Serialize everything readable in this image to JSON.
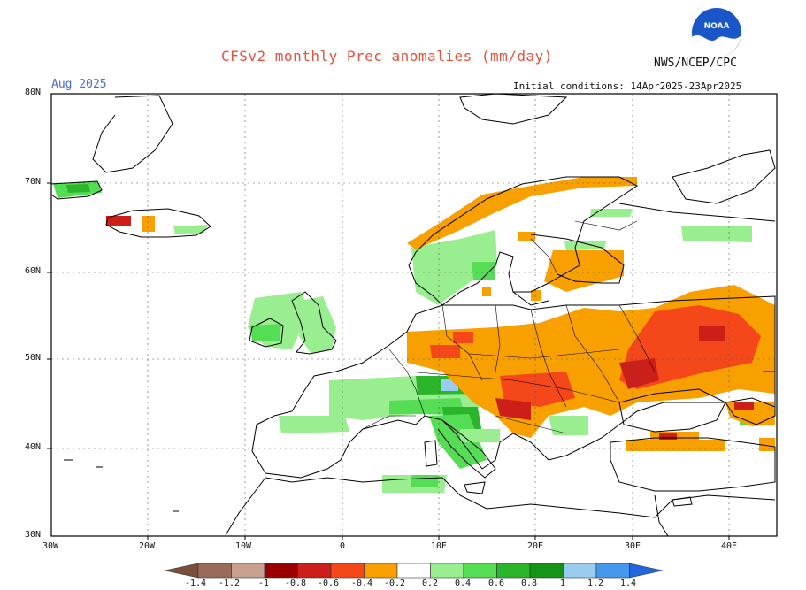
{
  "header": {
    "title": "CFSv2 monthly Prec anomalies (mm/day)",
    "agency": "NWS/NCEP/CPC",
    "month": "Aug 2025",
    "initial_conditions": "Initial conditions: 14Apr2025-23Apr2025",
    "logo_label": "NOAA"
  },
  "axes": {
    "lat_labels": [
      "80N",
      "70N",
      "60N",
      "50N",
      "40N",
      "30N"
    ],
    "lon_labels": [
      "30W",
      "20W",
      "10W",
      "0",
      "10E",
      "20E",
      "30E",
      "40E"
    ]
  },
  "colorbar": {
    "labels": [
      "-1.4",
      "-1.2",
      "-1",
      "-0.8",
      "-0.6",
      "-0.4",
      "-0.2",
      "0.2",
      "0.4",
      "0.6",
      "0.8",
      "1",
      "1.2",
      "1.4"
    ],
    "colors": [
      "#7a4e3c",
      "#9a6a5a",
      "#c8a090",
      "#9a0000",
      "#cc1f1a",
      "#f4481b",
      "#f8a000",
      "#ffffff",
      "#99ee90",
      "#55dd55",
      "#2ab52a",
      "#149414",
      "#99ccee",
      "#4499ee",
      "#2266dd"
    ]
  }
}
